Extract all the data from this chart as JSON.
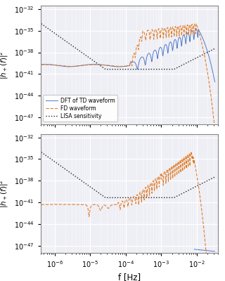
{
  "xlabel": "f [Hz]",
  "ylabel": "$|\\tilde{h}_+(f)|^2$",
  "xlim": [
    4e-07,
    0.04
  ],
  "ylim": [
    1e-48,
    3e-32
  ],
  "yticks": [
    1e-47,
    1e-44,
    1e-41,
    1e-38,
    1e-35,
    1e-32
  ],
  "colors": {
    "dft": "#4472c4",
    "fd": "#e07820",
    "lisa": "#222222"
  },
  "legend_labels": [
    "DFT of TD waveform",
    "FD waveform",
    "LISA sensitivity"
  ],
  "background_color": "#eeeef5",
  "grid_color": "#ffffff",
  "fig_bg": "#ffffff"
}
